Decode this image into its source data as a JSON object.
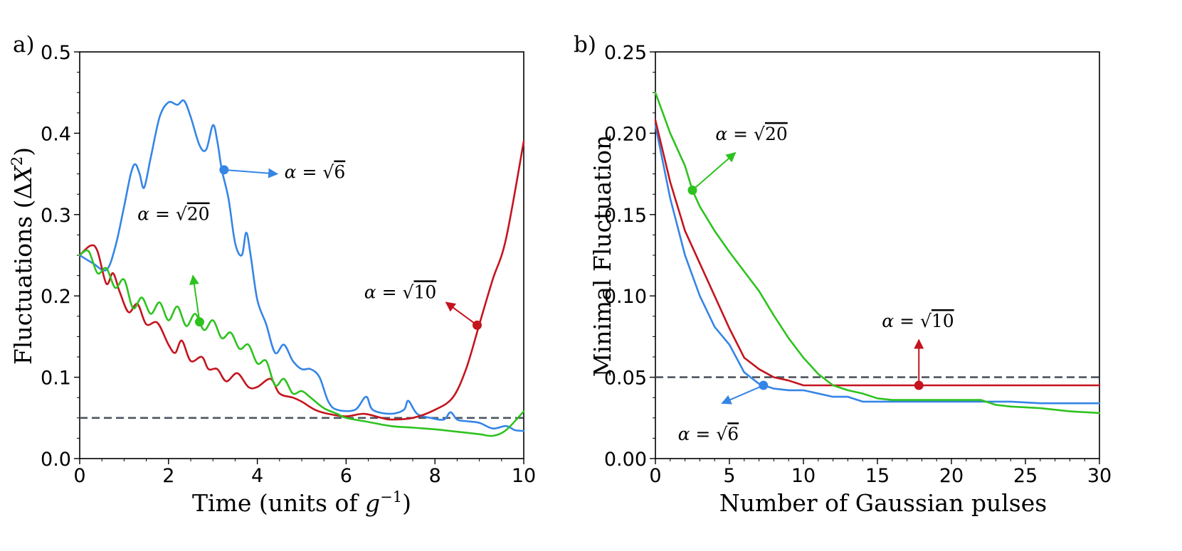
{
  "colors": {
    "blue": "#3585e6",
    "red": "#c4141e",
    "green": "#2ec21f",
    "dashed": "#4d5560"
  },
  "chart_data": [
    {
      "panel": "a)",
      "type": "line",
      "xlabel": "Time (units of g⁻¹)",
      "xlabel_main": "Time (units of ",
      "xlabel_var": "g",
      "xlabel_sup": "−1",
      "xlabel_end": ")",
      "ylabel": "Fluctuations (ΔX²)",
      "ylabel_main": "Fluctuations (Δ",
      "ylabel_var": "X",
      "ylabel_sup": "2",
      "ylabel_end": ")",
      "xlim": [
        0,
        10
      ],
      "ylim": [
        0,
        0.5
      ],
      "xticks": [
        0,
        2,
        4,
        6,
        8,
        10
      ],
      "xtick_labels": [
        "0",
        "2",
        "4",
        "6",
        "8",
        "10"
      ],
      "yticks": [
        0,
        0.1,
        0.2,
        0.3,
        0.4,
        0.5
      ],
      "ytick_labels": [
        "0.0",
        "0.1",
        "0.2",
        "0.3",
        "0.4",
        "0.5"
      ],
      "reference_line": {
        "y": 0.05,
        "style": "dashed"
      },
      "series": [
        {
          "name": "α = √6",
          "color_key": "blue",
          "x": [
            0,
            0.3,
            0.6,
            0.8,
            1.0,
            1.15,
            1.25,
            1.35,
            1.45,
            1.6,
            1.8,
            2.0,
            2.2,
            2.35,
            2.5,
            2.7,
            2.85,
            3.0,
            3.1,
            3.2,
            3.35,
            3.5,
            3.65,
            3.75,
            3.85,
            4.0,
            4.2,
            4.4,
            4.6,
            4.8,
            5.0,
            5.2,
            5.4,
            5.6,
            5.8,
            6.2,
            6.45,
            6.6,
            7.0,
            7.3,
            7.4,
            7.6,
            7.9,
            8.2,
            8.35,
            8.5,
            8.7,
            9.0,
            9.3,
            9.6,
            9.8,
            10.0
          ],
          "y": [
            0.25,
            0.24,
            0.232,
            0.26,
            0.31,
            0.35,
            0.362,
            0.35,
            0.333,
            0.37,
            0.42,
            0.438,
            0.435,
            0.44,
            0.42,
            0.385,
            0.38,
            0.41,
            0.39,
            0.355,
            0.32,
            0.265,
            0.25,
            0.278,
            0.25,
            0.195,
            0.165,
            0.13,
            0.14,
            0.12,
            0.11,
            0.11,
            0.1,
            0.07,
            0.06,
            0.06,
            0.076,
            0.06,
            0.055,
            0.06,
            0.071,
            0.055,
            0.05,
            0.048,
            0.057,
            0.048,
            0.046,
            0.044,
            0.037,
            0.04,
            0.035,
            0.034
          ]
        },
        {
          "name": "α = √10",
          "color_key": "red",
          "x": [
            0,
            0.25,
            0.4,
            0.6,
            0.75,
            0.9,
            1.1,
            1.3,
            1.5,
            1.75,
            2.0,
            2.15,
            2.3,
            2.5,
            2.75,
            2.9,
            3.1,
            3.3,
            3.55,
            3.8,
            4.0,
            4.3,
            4.5,
            4.8,
            5.0,
            5.3,
            5.6,
            6.0,
            6.4,
            6.8,
            7.0,
            7.5,
            8.0,
            8.4,
            8.7,
            9.0,
            9.3,
            9.6,
            10.0
          ],
          "y": [
            0.25,
            0.262,
            0.255,
            0.215,
            0.228,
            0.205,
            0.18,
            0.19,
            0.165,
            0.167,
            0.14,
            0.13,
            0.145,
            0.12,
            0.125,
            0.11,
            0.11,
            0.095,
            0.105,
            0.088,
            0.088,
            0.098,
            0.08,
            0.075,
            0.07,
            0.06,
            0.055,
            0.052,
            0.055,
            0.05,
            0.048,
            0.05,
            0.06,
            0.075,
            0.11,
            0.165,
            0.22,
            0.27,
            0.39
          ]
        },
        {
          "name": "α = √20",
          "color_key": "green",
          "x": [
            0,
            0.2,
            0.4,
            0.6,
            0.8,
            1.0,
            1.2,
            1.4,
            1.6,
            1.8,
            2.0,
            2.2,
            2.4,
            2.6,
            2.8,
            3.0,
            3.2,
            3.4,
            3.6,
            3.8,
            4.0,
            4.2,
            4.4,
            4.6,
            4.8,
            5.0,
            5.2,
            5.5,
            5.8,
            6.0,
            6.5,
            7.0,
            7.5,
            8.0,
            8.5,
            9.0,
            9.3,
            9.6,
            10.0
          ],
          "y": [
            0.25,
            0.255,
            0.228,
            0.234,
            0.21,
            0.22,
            0.185,
            0.198,
            0.178,
            0.192,
            0.17,
            0.187,
            0.163,
            0.178,
            0.158,
            0.17,
            0.148,
            0.155,
            0.135,
            0.14,
            0.117,
            0.12,
            0.09,
            0.098,
            0.08,
            0.083,
            0.075,
            0.062,
            0.055,
            0.05,
            0.045,
            0.04,
            0.038,
            0.036,
            0.033,
            0.03,
            0.028,
            0.035,
            0.058
          ]
        }
      ],
      "annotations": [
        {
          "series": "blue",
          "text_pre": "α = √",
          "text_num": "6",
          "point": [
            3.25,
            0.355
          ],
          "arrow_to": [
            4.45,
            0.35
          ]
        },
        {
          "series": "green",
          "text_pre": "α = √",
          "text_num": "20",
          "point": [
            2.7,
            0.168
          ],
          "arrow_to": [
            2.55,
            0.225
          ]
        },
        {
          "series": "red",
          "text_pre": "α = √",
          "text_num": "10",
          "point": [
            8.95,
            0.164
          ],
          "arrow_to": [
            8.25,
            0.192
          ]
        }
      ]
    },
    {
      "panel": "b)",
      "type": "line",
      "xlabel": "Number of Gaussian pulses",
      "ylabel": "Minimal Fluctuation",
      "xlim": [
        0,
        30
      ],
      "ylim": [
        0,
        0.25
      ],
      "xticks": [
        0,
        5,
        10,
        15,
        20,
        25,
        30
      ],
      "xtick_labels": [
        "0",
        "5",
        "10",
        "15",
        "20",
        "25",
        "30"
      ],
      "yticks": [
        0,
        0.05,
        0.1,
        0.15,
        0.2,
        0.25
      ],
      "ytick_labels": [
        "0.00",
        "0.05",
        "0.10",
        "0.15",
        "0.20",
        "0.25"
      ],
      "reference_line": {
        "y": 0.05,
        "style": "dashed"
      },
      "series": [
        {
          "name": "α = √6",
          "color_key": "blue",
          "x": [
            0,
            1,
            2,
            3,
            4,
            5,
            6,
            7,
            8,
            9,
            10,
            12,
            13,
            14,
            15,
            16,
            18,
            20,
            22,
            24,
            26,
            28,
            30
          ],
          "y": [
            0.205,
            0.16,
            0.125,
            0.1,
            0.081,
            0.07,
            0.053,
            0.046,
            0.043,
            0.042,
            0.042,
            0.038,
            0.038,
            0.035,
            0.035,
            0.035,
            0.035,
            0.035,
            0.035,
            0.035,
            0.034,
            0.034,
            0.034
          ]
        },
        {
          "name": "α = √10",
          "color_key": "red",
          "x": [
            0,
            1,
            2,
            3,
            4,
            5,
            6,
            7,
            8,
            9,
            10,
            12,
            15,
            20,
            25,
            30
          ],
          "y": [
            0.208,
            0.17,
            0.14,
            0.12,
            0.1,
            0.08,
            0.062,
            0.055,
            0.05,
            0.048,
            0.045,
            0.045,
            0.045,
            0.045,
            0.045,
            0.045
          ]
        },
        {
          "name": "α = √20",
          "color_key": "green",
          "x": [
            0,
            1,
            2,
            2.5,
            3,
            4,
            5,
            6,
            7,
            8,
            9,
            10,
            11,
            12,
            13,
            14,
            15,
            16,
            18,
            20,
            22,
            23,
            24,
            26,
            28,
            30
          ],
          "y": [
            0.225,
            0.2,
            0.18,
            0.165,
            0.155,
            0.14,
            0.127,
            0.115,
            0.103,
            0.088,
            0.074,
            0.062,
            0.052,
            0.045,
            0.042,
            0.04,
            0.037,
            0.036,
            0.036,
            0.036,
            0.036,
            0.033,
            0.032,
            0.031,
            0.029,
            0.028
          ]
        }
      ],
      "annotations": [
        {
          "series": "green",
          "text_pre": "α = √",
          "text_num": "20",
          "point": [
            2.5,
            0.165
          ],
          "arrow_to": [
            5.4,
            0.188
          ]
        },
        {
          "series": "red",
          "text_pre": "α = √",
          "text_num": "10",
          "point": [
            17.8,
            0.045
          ],
          "arrow_to": [
            17.8,
            0.073
          ]
        },
        {
          "series": "blue",
          "text_pre": "α = √",
          "text_num": "6",
          "point": [
            7.3,
            0.045
          ],
          "arrow_to": [
            4.5,
            0.034
          ]
        }
      ]
    }
  ]
}
